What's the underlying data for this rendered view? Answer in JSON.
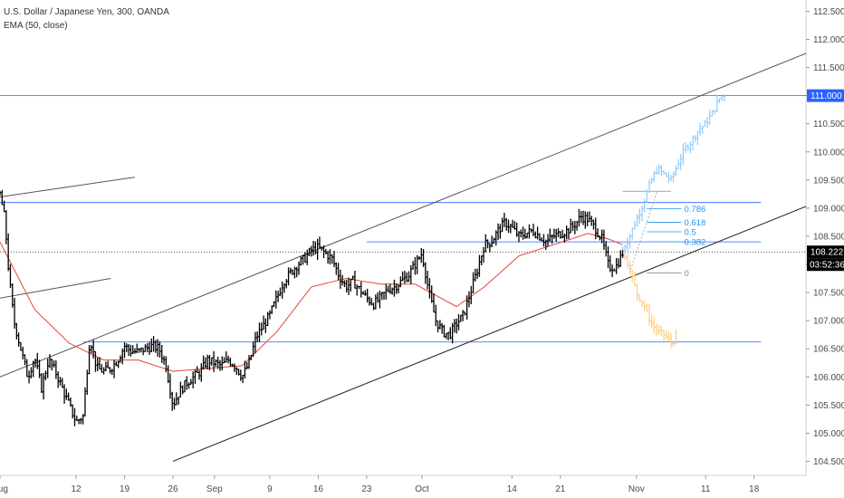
{
  "header": {
    "title": "U.S. Dollar / Japanese Yen, 300, OANDA",
    "indicator": "EMA (50, close)"
  },
  "chart_data": {
    "type": "candlestick",
    "y_ticks": [
      "104.500",
      "105.000",
      "105.500",
      "106.000",
      "106.500",
      "107.000",
      "107.500",
      "108.000",
      "108.500",
      "109.000",
      "109.500",
      "110.000",
      "110.500",
      "111.000",
      "111.500",
      "112.000",
      "112.500"
    ],
    "x_ticks": [
      {
        "label": "Aug",
        "day": 0
      },
      {
        "label": "12",
        "day": 11
      },
      {
        "label": "19",
        "day": 18
      },
      {
        "label": "26",
        "day": 25
      },
      {
        "label": "Sep",
        "day": 31
      },
      {
        "label": "9",
        "day": 39
      },
      {
        "label": "16",
        "day": 46
      },
      {
        "label": "23",
        "day": 53
      },
      {
        "label": "Oct",
        "day": 61
      },
      {
        "label": "14",
        "day": 74
      },
      {
        "label": "21",
        "day": 81
      },
      {
        "label": "Nov",
        "day": 92
      },
      {
        "label": "11",
        "day": 102
      },
      {
        "label": "18",
        "day": 109
      }
    ],
    "ylim": [
      104.25,
      112.7
    ],
    "xlim_days": [
      0,
      116.5
    ],
    "last_price": {
      "label": "108.222",
      "value": 108.222
    },
    "countdown": "03:52:36",
    "target_level": {
      "label": "111.000",
      "value": 111.0
    },
    "horizontal_levels": [
      111.0,
      109.1,
      108.4,
      106.62
    ],
    "trendlines": [
      {
        "from": [
          0,
          106.0
        ],
        "to": [
          116.5,
          111.75
        ],
        "color": "#555555"
      },
      {
        "from": [
          25,
          104.5
        ],
        "to": [
          116.5,
          109.03
        ],
        "color": "#222222"
      },
      {
        "from": [
          0,
          109.2
        ],
        "to": [
          19.5,
          109.55
        ],
        "color": "#555555"
      },
      {
        "from": [
          0,
          107.4
        ],
        "to": [
          16,
          107.75
        ],
        "color": "#555555"
      }
    ],
    "fibonacci": {
      "from_value": 107.85,
      "to_value": 109.3,
      "levels": [
        {
          "label": "0",
          "value": 107.85
        },
        {
          "label": "0.382",
          "value": 108.4
        },
        {
          "label": "0.5",
          "value": 108.58
        },
        {
          "label": "0.618",
          "value": 108.75
        },
        {
          "label": "0.786",
          "value": 108.99
        }
      ]
    },
    "price_path": [
      [
        0,
        109.25
      ],
      [
        0.7,
        108.8
      ],
      [
        1.3,
        107.8
      ],
      [
        2,
        107.0
      ],
      [
        3,
        106.5
      ],
      [
        4,
        106.0
      ],
      [
        5,
        106.35
      ],
      [
        6,
        105.8
      ],
      [
        7,
        106.3
      ],
      [
        8,
        106.1
      ],
      [
        9,
        105.8
      ],
      [
        10,
        105.5
      ],
      [
        11,
        105.2
      ],
      [
        12,
        105.3
      ],
      [
        13,
        106.7
      ],
      [
        14,
        106.15
      ],
      [
        15,
        106.1
      ],
      [
        16,
        106.15
      ],
      [
        17,
        106.3
      ],
      [
        18,
        106.55
      ],
      [
        19,
        106.45
      ],
      [
        20,
        106.45
      ],
      [
        21,
        106.5
      ],
      [
        22,
        106.55
      ],
      [
        23,
        106.5
      ],
      [
        24,
        106.2
      ],
      [
        25,
        105.5
      ],
      [
        26,
        105.75
      ],
      [
        27,
        105.9
      ],
      [
        28,
        106.0
      ],
      [
        29,
        106.1
      ],
      [
        30,
        106.3
      ],
      [
        31,
        106.25
      ],
      [
        32,
        106.2
      ],
      [
        33,
        106.3
      ],
      [
        34,
        106.2
      ],
      [
        35,
        106.0
      ],
      [
        36,
        106.25
      ],
      [
        37,
        106.7
      ],
      [
        38,
        106.9
      ],
      [
        39,
        107.1
      ],
      [
        40,
        107.4
      ],
      [
        41,
        107.7
      ],
      [
        42,
        107.85
      ],
      [
        43,
        108.0
      ],
      [
        44,
        108.1
      ],
      [
        45,
        108.25
      ],
      [
        46,
        108.3
      ],
      [
        47,
        108.2
      ],
      [
        48,
        108.1
      ],
      [
        49,
        107.8
      ],
      [
        50,
        107.6
      ],
      [
        51,
        107.7
      ],
      [
        52,
        107.55
      ],
      [
        53,
        107.4
      ],
      [
        54,
        107.3
      ],
      [
        55,
        107.4
      ],
      [
        56,
        107.55
      ],
      [
        57,
        107.6
      ],
      [
        58,
        107.7
      ],
      [
        59,
        107.8
      ],
      [
        60,
        108.0
      ],
      [
        61,
        108.2
      ],
      [
        62,
        107.5
      ],
      [
        63,
        107.0
      ],
      [
        64,
        106.8
      ],
      [
        65,
        106.75
      ],
      [
        66,
        106.95
      ],
      [
        67,
        107.1
      ],
      [
        68,
        107.5
      ],
      [
        69,
        107.9
      ],
      [
        70,
        108.35
      ],
      [
        71,
        108.4
      ],
      [
        72,
        108.6
      ],
      [
        73,
        108.75
      ],
      [
        74,
        108.65
      ],
      [
        75,
        108.5
      ],
      [
        76,
        108.55
      ],
      [
        77,
        108.6
      ],
      [
        78,
        108.5
      ],
      [
        79,
        108.4
      ],
      [
        80,
        108.5
      ],
      [
        81,
        108.55
      ],
      [
        82,
        108.6
      ],
      [
        83,
        108.7
      ],
      [
        84,
        108.85
      ],
      [
        85,
        108.8
      ],
      [
        86,
        108.65
      ],
      [
        87,
        108.45
      ],
      [
        88,
        107.95
      ],
      [
        89,
        107.95
      ],
      [
        90,
        108.2
      ]
    ],
    "ema_path": [
      [
        0,
        108.4
      ],
      [
        5,
        107.2
      ],
      [
        10,
        106.6
      ],
      [
        15,
        106.3
      ],
      [
        20,
        106.3
      ],
      [
        25,
        106.1
      ],
      [
        30,
        106.15
      ],
      [
        35,
        106.2
      ],
      [
        40,
        106.8
      ],
      [
        45,
        107.6
      ],
      [
        50,
        107.75
      ],
      [
        55,
        107.65
      ],
      [
        60,
        107.65
      ],
      [
        63,
        107.45
      ],
      [
        66,
        107.25
      ],
      [
        70,
        107.6
      ],
      [
        75,
        108.15
      ],
      [
        80,
        108.35
      ],
      [
        85,
        108.55
      ],
      [
        88,
        108.45
      ],
      [
        90,
        108.35
      ]
    ],
    "projection_up": [
      [
        90,
        108.25
      ],
      [
        91,
        108.5
      ],
      [
        92,
        108.8
      ],
      [
        93,
        109.1
      ],
      [
        94,
        109.45
      ],
      [
        95,
        109.7
      ],
      [
        96,
        109.6
      ],
      [
        97,
        109.5
      ],
      [
        98,
        109.8
      ],
      [
        99,
        110.05
      ],
      [
        100,
        110.2
      ],
      [
        101,
        110.4
      ],
      [
        102,
        110.5
      ],
      [
        103,
        110.7
      ],
      [
        104,
        110.95
      ],
      [
        105,
        111.05
      ]
    ],
    "projection_down": [
      [
        90,
        108.2
      ],
      [
        91,
        107.95
      ],
      [
        92,
        107.5
      ],
      [
        93,
        107.3
      ],
      [
        94,
        107.0
      ],
      [
        95,
        106.8
      ],
      [
        96,
        106.75
      ],
      [
        97,
        106.6
      ],
      [
        98,
        106.75
      ]
    ],
    "colors": {
      "candle": "#000000",
      "ema": "#e8453c",
      "level": "#2962ff",
      "fib": "#2196f3",
      "projection_up": "#90caf9",
      "projection_down": "#ffcc80",
      "tag_level": "#2962ff",
      "tag_price": "#000000"
    }
  }
}
